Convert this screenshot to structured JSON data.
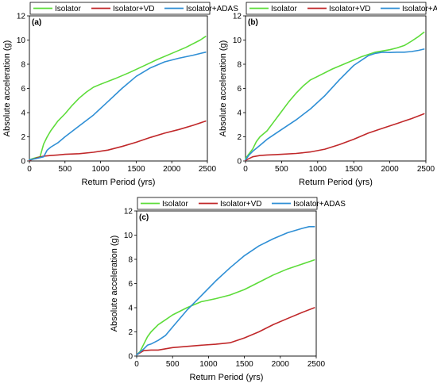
{
  "legend": {
    "isolator": "Isolator",
    "isolator_vd": "Isolator+VD",
    "isolator_adas": "Isolator+ADAS"
  },
  "colors": {
    "isolator": "#5ddc3a",
    "isolator_vd": "#c0282a",
    "isolator_adas": "#2f8fd5"
  },
  "chart_data": [
    {
      "type": "line",
      "panel_label": "(a)",
      "xlabel": "Return Period (yrs)",
      "ylabel": "Absolute acceleration (g)",
      "xlim": [
        0,
        2500
      ],
      "ylim": [
        0,
        12
      ],
      "xticks": [
        0,
        500,
        1000,
        1500,
        2000,
        2500
      ],
      "yticks": [
        0,
        2,
        4,
        6,
        8,
        10,
        12
      ],
      "grid": false,
      "legend_position": "top",
      "series": [
        {
          "name": "Isolator",
          "x": [
            0,
            50,
            100,
            150,
            200,
            250,
            300,
            400,
            500,
            600,
            700,
            800,
            900,
            1000,
            1200,
            1400,
            1600,
            1800,
            2000,
            2200,
            2400,
            2475
          ],
          "y": [
            0.1,
            0.2,
            0.28,
            0.35,
            1.4,
            2.0,
            2.5,
            3.3,
            3.9,
            4.6,
            5.2,
            5.7,
            6.1,
            6.35,
            6.8,
            7.3,
            7.85,
            8.4,
            8.9,
            9.4,
            10.0,
            10.3
          ]
        },
        {
          "name": "Isolator+VD",
          "x": [
            0,
            100,
            200,
            300,
            400,
            500,
            700,
            900,
            1100,
            1300,
            1500,
            1700,
            1900,
            2100,
            2300,
            2475
          ],
          "y": [
            0.05,
            0.25,
            0.4,
            0.45,
            0.5,
            0.55,
            0.6,
            0.72,
            0.9,
            1.2,
            1.55,
            1.95,
            2.3,
            2.6,
            2.95,
            3.3
          ]
        },
        {
          "name": "Isolator+ADAS",
          "x": [
            0,
            100,
            200,
            250,
            300,
            400,
            500,
            700,
            900,
            1100,
            1300,
            1500,
            1700,
            1900,
            2100,
            2300,
            2475
          ],
          "y": [
            0.1,
            0.2,
            0.35,
            0.9,
            1.15,
            1.5,
            2.0,
            2.9,
            3.8,
            4.9,
            6.0,
            7.0,
            7.7,
            8.2,
            8.5,
            8.75,
            9.0
          ]
        }
      ]
    },
    {
      "type": "line",
      "panel_label": "(b)",
      "xlabel": "Return Period (yrs)",
      "ylabel": "Absolute acceleration (g)",
      "xlim": [
        0,
        2500
      ],
      "ylim": [
        0,
        12
      ],
      "xticks": [
        0,
        500,
        1000,
        1500,
        2000,
        2500
      ],
      "yticks": [
        0,
        2,
        4,
        6,
        8,
        10,
        12
      ],
      "grid": false,
      "legend_position": "top",
      "series": [
        {
          "name": "Isolator",
          "x": [
            0,
            50,
            100,
            150,
            200,
            300,
            400,
            500,
            600,
            700,
            800,
            900,
            1000,
            1200,
            1400,
            1600,
            1800,
            2000,
            2100,
            2200,
            2300,
            2400,
            2475
          ],
          "y": [
            0.2,
            0.6,
            1.0,
            1.6,
            2.0,
            2.5,
            3.3,
            4.1,
            4.9,
            5.6,
            6.2,
            6.7,
            7.0,
            7.6,
            8.1,
            8.6,
            9.0,
            9.2,
            9.35,
            9.55,
            9.9,
            10.3,
            10.65
          ]
        },
        {
          "name": "Isolator+VD",
          "x": [
            0,
            100,
            200,
            300,
            400,
            500,
            700,
            900,
            1100,
            1300,
            1500,
            1700,
            1900,
            2100,
            2300,
            2475
          ],
          "y": [
            0.05,
            0.35,
            0.45,
            0.5,
            0.52,
            0.55,
            0.62,
            0.75,
            0.98,
            1.35,
            1.8,
            2.3,
            2.7,
            3.1,
            3.5,
            3.9
          ]
        },
        {
          "name": "Isolator+ADAS",
          "x": [
            0,
            50,
            100,
            200,
            300,
            500,
            700,
            900,
            1100,
            1300,
            1500,
            1700,
            1800,
            1900,
            2000,
            2100,
            2200,
            2300,
            2400,
            2475
          ],
          "y": [
            0.1,
            0.5,
            0.8,
            1.3,
            1.8,
            2.6,
            3.4,
            4.3,
            5.4,
            6.7,
            7.9,
            8.7,
            8.9,
            9.0,
            8.97,
            9.0,
            9.0,
            9.05,
            9.15,
            9.25
          ]
        }
      ]
    },
    {
      "type": "line",
      "panel_label": "(c)",
      "xlabel": "Return Period (yrs)",
      "ylabel": "Absolute acceleration (g)",
      "xlim": [
        0,
        2500
      ],
      "ylim": [
        0,
        12
      ],
      "xticks": [
        0,
        500,
        1000,
        1500,
        2000,
        2500
      ],
      "yticks": [
        0,
        2,
        4,
        6,
        8,
        10,
        12
      ],
      "grid": false,
      "legend_position": "top",
      "series": [
        {
          "name": "Isolator",
          "x": [
            0,
            50,
            100,
            150,
            200,
            300,
            400,
            500,
            700,
            900,
            1100,
            1300,
            1500,
            1700,
            1900,
            2100,
            2300,
            2475
          ],
          "y": [
            0.1,
            0.4,
            1.0,
            1.6,
            2.0,
            2.6,
            3.0,
            3.4,
            4.0,
            4.5,
            4.75,
            5.05,
            5.5,
            6.1,
            6.7,
            7.2,
            7.6,
            7.95
          ]
        },
        {
          "name": "Isolator+VD",
          "x": [
            0,
            100,
            200,
            300,
            500,
            700,
            900,
            1100,
            1300,
            1500,
            1700,
            1900,
            2100,
            2300,
            2475
          ],
          "y": [
            0.1,
            0.45,
            0.5,
            0.5,
            0.7,
            0.8,
            0.9,
            0.98,
            1.1,
            1.5,
            2.0,
            2.6,
            3.1,
            3.6,
            4.0
          ]
        },
        {
          "name": "Isolator+ADAS",
          "x": [
            0,
            50,
            100,
            150,
            200,
            300,
            400,
            500,
            700,
            900,
            1100,
            1300,
            1500,
            1700,
            1900,
            2100,
            2300,
            2400,
            2475
          ],
          "y": [
            0.1,
            0.35,
            0.6,
            0.9,
            1.0,
            1.3,
            1.7,
            2.4,
            3.8,
            5.0,
            6.2,
            7.3,
            8.3,
            9.1,
            9.7,
            10.2,
            10.55,
            10.7,
            10.7
          ]
        }
      ]
    }
  ]
}
